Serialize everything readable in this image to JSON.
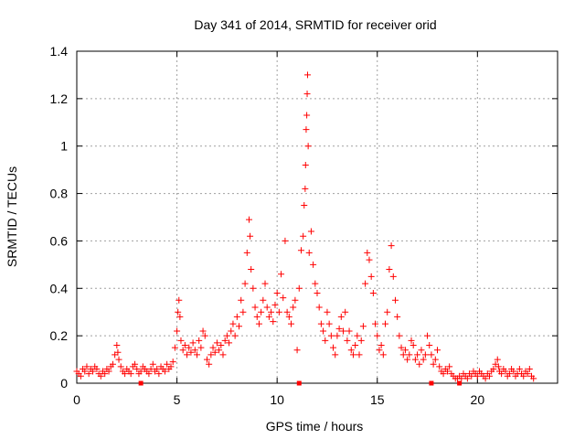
{
  "chart_data": {
    "type": "scatter",
    "title": "Day 341 of 2014, SRMTID for receiver orid",
    "xlabel": "GPS time / hours",
    "ylabel": "SRMTID / TECUs",
    "xlim": [
      0,
      24
    ],
    "ylim": [
      0,
      1.4
    ],
    "xticks": [
      "0",
      "5",
      "10",
      "15",
      "20"
    ],
    "yticks": [
      "0",
      "0.2",
      "0.4",
      "0.6",
      "0.8",
      "1",
      "1.2",
      "1.4"
    ],
    "grid": true,
    "marker": "+",
    "color": "#ff0000",
    "series": [
      {
        "name": "SRMTID",
        "points": [
          [
            0.0,
            0.05
          ],
          [
            0.1,
            0.04
          ],
          [
            0.2,
            0.03
          ],
          [
            0.3,
            0.06
          ],
          [
            0.4,
            0.05
          ],
          [
            0.5,
            0.07
          ],
          [
            0.6,
            0.04
          ],
          [
            0.7,
            0.06
          ],
          [
            0.8,
            0.05
          ],
          [
            0.9,
            0.07
          ],
          [
            1.0,
            0.06
          ],
          [
            1.1,
            0.04
          ],
          [
            1.2,
            0.03
          ],
          [
            1.3,
            0.05
          ],
          [
            1.4,
            0.04
          ],
          [
            1.5,
            0.06
          ],
          [
            1.6,
            0.05
          ],
          [
            1.7,
            0.07
          ],
          [
            1.8,
            0.08
          ],
          [
            1.9,
            0.12
          ],
          [
            2.0,
            0.16
          ],
          [
            2.05,
            0.13
          ],
          [
            2.1,
            0.1
          ],
          [
            2.2,
            0.07
          ],
          [
            2.3,
            0.05
          ],
          [
            2.4,
            0.04
          ],
          [
            2.5,
            0.06
          ],
          [
            2.6,
            0.05
          ],
          [
            2.7,
            0.04
          ],
          [
            2.8,
            0.07
          ],
          [
            2.9,
            0.08
          ],
          [
            3.0,
            0.06
          ],
          [
            3.1,
            0.04
          ],
          [
            3.2,
            0.05
          ],
          [
            3.3,
            0.07
          ],
          [
            3.4,
            0.06
          ],
          [
            3.5,
            0.05
          ],
          [
            3.6,
            0.04
          ],
          [
            3.7,
            0.06
          ],
          [
            3.8,
            0.08
          ],
          [
            3.9,
            0.05
          ],
          [
            4.0,
            0.06
          ],
          [
            4.1,
            0.04
          ],
          [
            4.2,
            0.07
          ],
          [
            4.3,
            0.06
          ],
          [
            4.4,
            0.05
          ],
          [
            4.5,
            0.08
          ],
          [
            4.6,
            0.06
          ],
          [
            4.7,
            0.07
          ],
          [
            4.8,
            0.09
          ],
          [
            4.9,
            0.15
          ],
          [
            5.0,
            0.22
          ],
          [
            5.05,
            0.3
          ],
          [
            5.1,
            0.35
          ],
          [
            5.15,
            0.28
          ],
          [
            5.2,
            0.18
          ],
          [
            5.3,
            0.14
          ],
          [
            5.4,
            0.16
          ],
          [
            5.5,
            0.12
          ],
          [
            5.6,
            0.15
          ],
          [
            5.7,
            0.13
          ],
          [
            5.8,
            0.17
          ],
          [
            5.9,
            0.14
          ],
          [
            6.0,
            0.12
          ],
          [
            6.1,
            0.18
          ],
          [
            6.2,
            0.15
          ],
          [
            6.3,
            0.22
          ],
          [
            6.4,
            0.2
          ],
          [
            6.5,
            0.1
          ],
          [
            6.6,
            0.08
          ],
          [
            6.7,
            0.12
          ],
          [
            6.8,
            0.15
          ],
          [
            6.9,
            0.13
          ],
          [
            7.0,
            0.17
          ],
          [
            7.1,
            0.14
          ],
          [
            7.2,
            0.16
          ],
          [
            7.3,
            0.12
          ],
          [
            7.4,
            0.18
          ],
          [
            7.5,
            0.2
          ],
          [
            7.6,
            0.17
          ],
          [
            7.7,
            0.22
          ],
          [
            7.8,
            0.25
          ],
          [
            7.9,
            0.2
          ],
          [
            8.0,
            0.28
          ],
          [
            8.1,
            0.24
          ],
          [
            8.2,
            0.35
          ],
          [
            8.3,
            0.3
          ],
          [
            8.4,
            0.42
          ],
          [
            8.5,
            0.55
          ],
          [
            8.6,
            0.69
          ],
          [
            8.65,
            0.62
          ],
          [
            8.7,
            0.48
          ],
          [
            8.8,
            0.4
          ],
          [
            8.9,
            0.32
          ],
          [
            9.0,
            0.28
          ],
          [
            9.1,
            0.25
          ],
          [
            9.2,
            0.3
          ],
          [
            9.3,
            0.35
          ],
          [
            9.4,
            0.42
          ],
          [
            9.5,
            0.32
          ],
          [
            9.6,
            0.28
          ],
          [
            9.7,
            0.3
          ],
          [
            9.8,
            0.26
          ],
          [
            9.9,
            0.33
          ],
          [
            10.0,
            0.38
          ],
          [
            10.1,
            0.3
          ],
          [
            10.2,
            0.46
          ],
          [
            10.3,
            0.36
          ],
          [
            10.4,
            0.6
          ],
          [
            10.5,
            0.3
          ],
          [
            10.6,
            0.28
          ],
          [
            10.7,
            0.25
          ],
          [
            10.8,
            0.32
          ],
          [
            10.9,
            0.35
          ],
          [
            11.0,
            0.14
          ],
          [
            11.1,
            0.4
          ],
          [
            11.2,
            0.56
          ],
          [
            11.3,
            0.62
          ],
          [
            11.35,
            0.75
          ],
          [
            11.4,
            0.82
          ],
          [
            11.42,
            0.92
          ],
          [
            11.45,
            1.07
          ],
          [
            11.48,
            1.13
          ],
          [
            11.5,
            1.22
          ],
          [
            11.52,
            1.3
          ],
          [
            11.55,
            1.0
          ],
          [
            11.6,
            0.55
          ],
          [
            11.7,
            0.64
          ],
          [
            11.8,
            0.5
          ],
          [
            11.9,
            0.42
          ],
          [
            12.0,
            0.38
          ],
          [
            12.1,
            0.32
          ],
          [
            12.2,
            0.25
          ],
          [
            12.3,
            0.22
          ],
          [
            12.4,
            0.18
          ],
          [
            12.5,
            0.3
          ],
          [
            12.6,
            0.25
          ],
          [
            12.7,
            0.2
          ],
          [
            12.8,
            0.15
          ],
          [
            12.9,
            0.12
          ],
          [
            13.0,
            0.2
          ],
          [
            13.1,
            0.23
          ],
          [
            13.2,
            0.28
          ],
          [
            13.3,
            0.22
          ],
          [
            13.4,
            0.3
          ],
          [
            13.5,
            0.18
          ],
          [
            13.6,
            0.22
          ],
          [
            13.7,
            0.14
          ],
          [
            13.8,
            0.12
          ],
          [
            13.9,
            0.16
          ],
          [
            14.0,
            0.2
          ],
          [
            14.1,
            0.12
          ],
          [
            14.2,
            0.18
          ],
          [
            14.3,
            0.24
          ],
          [
            14.4,
            0.42
          ],
          [
            14.5,
            0.55
          ],
          [
            14.6,
            0.52
          ],
          [
            14.7,
            0.45
          ],
          [
            14.8,
            0.38
          ],
          [
            14.9,
            0.25
          ],
          [
            15.0,
            0.2
          ],
          [
            15.1,
            0.14
          ],
          [
            15.2,
            0.16
          ],
          [
            15.3,
            0.12
          ],
          [
            15.4,
            0.25
          ],
          [
            15.5,
            0.3
          ],
          [
            15.6,
            0.48
          ],
          [
            15.7,
            0.58
          ],
          [
            15.8,
            0.45
          ],
          [
            15.9,
            0.35
          ],
          [
            16.0,
            0.28
          ],
          [
            16.1,
            0.2
          ],
          [
            16.2,
            0.15
          ],
          [
            16.3,
            0.12
          ],
          [
            16.4,
            0.14
          ],
          [
            16.5,
            0.1
          ],
          [
            16.6,
            0.12
          ],
          [
            16.7,
            0.18
          ],
          [
            16.8,
            0.16
          ],
          [
            16.9,
            0.1
          ],
          [
            17.0,
            0.12
          ],
          [
            17.1,
            0.08
          ],
          [
            17.2,
            0.14
          ],
          [
            17.3,
            0.1
          ],
          [
            17.4,
            0.12
          ],
          [
            17.5,
            0.2
          ],
          [
            17.6,
            0.16
          ],
          [
            17.7,
            0.12
          ],
          [
            17.8,
            0.08
          ],
          [
            17.9,
            0.1
          ],
          [
            18.0,
            0.14
          ],
          [
            18.1,
            0.07
          ],
          [
            18.2,
            0.05
          ],
          [
            18.3,
            0.04
          ],
          [
            18.4,
            0.06
          ],
          [
            18.5,
            0.05
          ],
          [
            18.6,
            0.07
          ],
          [
            18.7,
            0.04
          ],
          [
            18.8,
            0.03
          ],
          [
            18.9,
            0.02
          ],
          [
            19.0,
            0.02
          ],
          [
            19.1,
            0.03
          ],
          [
            19.2,
            0.02
          ],
          [
            19.3,
            0.04
          ],
          [
            19.4,
            0.03
          ],
          [
            19.5,
            0.02
          ],
          [
            19.6,
            0.04
          ],
          [
            19.7,
            0.03
          ],
          [
            19.8,
            0.05
          ],
          [
            19.9,
            0.04
          ],
          [
            20.0,
            0.03
          ],
          [
            20.1,
            0.05
          ],
          [
            20.2,
            0.04
          ],
          [
            20.3,
            0.03
          ],
          [
            20.4,
            0.02
          ],
          [
            20.5,
            0.04
          ],
          [
            20.6,
            0.03
          ],
          [
            20.7,
            0.05
          ],
          [
            20.8,
            0.06
          ],
          [
            20.9,
            0.08
          ],
          [
            21.0,
            0.1
          ],
          [
            21.05,
            0.07
          ],
          [
            21.1,
            0.05
          ],
          [
            21.2,
            0.04
          ],
          [
            21.3,
            0.06
          ],
          [
            21.4,
            0.05
          ],
          [
            21.5,
            0.03
          ],
          [
            21.6,
            0.04
          ],
          [
            21.7,
            0.06
          ],
          [
            21.8,
            0.05
          ],
          [
            21.9,
            0.03
          ],
          [
            22.0,
            0.04
          ],
          [
            22.1,
            0.06
          ],
          [
            22.2,
            0.04
          ],
          [
            22.3,
            0.03
          ],
          [
            22.4,
            0.05
          ],
          [
            22.5,
            0.04
          ],
          [
            22.6,
            0.06
          ],
          [
            22.7,
            0.03
          ],
          [
            22.8,
            0.02
          ]
        ]
      }
    ],
    "zero_markers": [
      3.2,
      11.1,
      17.7,
      19.1
    ]
  }
}
